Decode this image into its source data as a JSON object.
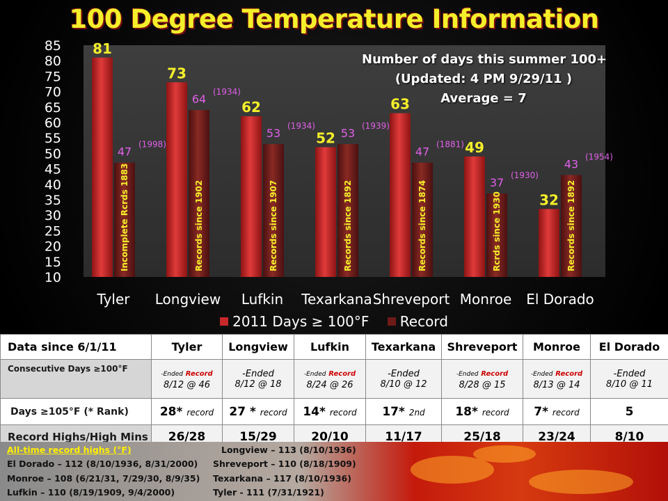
{
  "title": "100 Degree Temperature Information",
  "info_box": [
    "Number of days this summer 100+",
    "(Updated: 4 PM 9/29/11 )",
    "Average = 7"
  ],
  "colors": {
    "current_bar": "#c8282a",
    "record_bar": "#6e1a17",
    "value_current": "#f4ef2a",
    "value_record": "#e060e8",
    "plot_bg": "#3a3a3a"
  },
  "chart_data": {
    "type": "bar",
    "categories": [
      "Tyler",
      "Longview",
      "Lufkin",
      "Texarkana",
      "Shreveport",
      "Monroe",
      "El Dorado"
    ],
    "series": [
      {
        "name": "2011 Days ≥ 100°F",
        "values": [
          81,
          73,
          62,
          52,
          63,
          49,
          32
        ]
      },
      {
        "name": "Record",
        "values": [
          47,
          64,
          53,
          53,
          47,
          37,
          43
        ],
        "years": [
          "(1998)",
          "(1934)",
          "(1934)",
          "(1939)",
          "(1881)",
          "(1930)",
          "(1954)"
        ],
        "bar_notes": [
          "Incomplete Rcrds  1883",
          "Records since 1902",
          "Records since 1907",
          "Records since 1892",
          "Records since 1874",
          "Rcrds since 1930",
          "Records since 1892"
        ]
      }
    ],
    "ylim": [
      10,
      85
    ],
    "yticks": [
      85,
      80,
      75,
      70,
      65,
      60,
      55,
      50,
      45,
      40,
      35,
      30,
      25,
      20,
      15,
      10
    ],
    "grid": false,
    "legend": "bottom"
  },
  "table": {
    "header": [
      "Data since 6/1/11",
      "Tyler",
      "Longview",
      "Lufkin",
      "Texarkana",
      "Shreveport",
      "Monroe",
      "El Dorado"
    ],
    "consecutive": {
      "label": "Consecutive Days ≥100°F",
      "cells": [
        {
          "ended": "-Ended",
          "record": "Record",
          "detail": "8/12 @ 46"
        },
        {
          "ended": "-Ended",
          "record": "",
          "detail": "8/12 @ 18"
        },
        {
          "ended": "-Ended",
          "record": "Record",
          "detail": "8/24 @ 26"
        },
        {
          "ended": "-Ended",
          "record": "",
          "detail": "8/10 @ 12"
        },
        {
          "ended": "-Ended",
          "record": "Record",
          "detail": "8/28 @ 15"
        },
        {
          "ended": "-Ended",
          "record": "Record",
          "detail": "8/13 @ 14"
        },
        {
          "ended": "-Ended",
          "record": "",
          "detail": "8/10 @ 11"
        }
      ]
    },
    "days105": {
      "label": "Days ≥105°F  (* Rank)",
      "cells": [
        {
          "value": "28*",
          "note": "record"
        },
        {
          "value": "27 *",
          "note": "record"
        },
        {
          "value": "14*",
          "note": "record"
        },
        {
          "value": "17*",
          "note": "2nd"
        },
        {
          "value": "18*",
          "note": "record"
        },
        {
          "value": "7*",
          "note": "record"
        },
        {
          "value": "5",
          "note": ""
        }
      ]
    },
    "record_highs": {
      "label": "Record Highs/High Mins",
      "cells": [
        "26/28",
        "15/29",
        "20/10",
        "11/17",
        "25/18",
        "23/24",
        "8/10"
      ]
    }
  },
  "all_time_records": {
    "heading": "All-time record highs (°F)",
    "left": [
      "El Dorado – 112 (8/10/1936, 8/31/2000)",
      "Monroe – 108 (6/21/31, 7/29/30, 8/9/35)",
      "Lufkin – 110 (8/19/1909, 9/4/2000)"
    ],
    "right": [
      "Longview – 113 (8/10/1936)",
      "Shreveport – 110 (8/18/1909)",
      "Texarkana – 117 (8/10/1936)",
      "Tyler  - 111 (7/31/1921)"
    ]
  }
}
